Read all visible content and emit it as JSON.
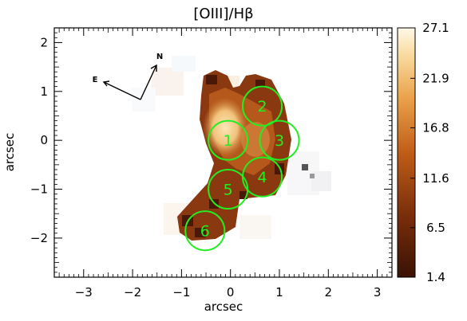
{
  "chart_data": {
    "type": "heatmap",
    "title": "[OIII]/Hβ",
    "xlabel": "arcsec",
    "ylabel": "arcsec",
    "xlim": [
      -3.6,
      3.3
    ],
    "ylim": [
      -2.8,
      2.3
    ],
    "x_ticks": [
      -3,
      -2,
      -1,
      0,
      1,
      2,
      3
    ],
    "x_tick_labels": [
      "−3",
      "−2",
      "−1",
      "0",
      "1",
      "2",
      "3"
    ],
    "y_ticks": [
      2,
      1,
      0,
      -1,
      -2
    ],
    "y_tick_labels": [
      "2",
      "1",
      "0",
      "−1",
      "−2"
    ],
    "colorbar": {
      "min": 1.4,
      "max": 27.1,
      "ticks": [
        27.1,
        21.9,
        16.8,
        11.6,
        6.5,
        1.4
      ],
      "tick_labels": [
        "27.1",
        "21.9",
        "16.8",
        "11.6",
        "6.5",
        "1.4"
      ],
      "colormap": "dark brown to orange to pale cream"
    },
    "compass": {
      "north_label": "N",
      "east_label": "E"
    },
    "regions": [
      {
        "label": "1",
        "x": -0.05,
        "y": 0.0,
        "radius": 0.4
      },
      {
        "label": "2",
        "x": 0.65,
        "y": 0.7,
        "radius": 0.4
      },
      {
        "label": "3",
        "x": 1.0,
        "y": 0.0,
        "radius": 0.4
      },
      {
        "label": "4",
        "x": 0.65,
        "y": -0.75,
        "radius": 0.4
      },
      {
        "label": "5",
        "x": -0.05,
        "y": -1.0,
        "radius": 0.4
      },
      {
        "label": "6",
        "x": -0.52,
        "y": -1.85,
        "radius": 0.4
      }
    ],
    "region_color": "#22ee22",
    "grid": false
  }
}
